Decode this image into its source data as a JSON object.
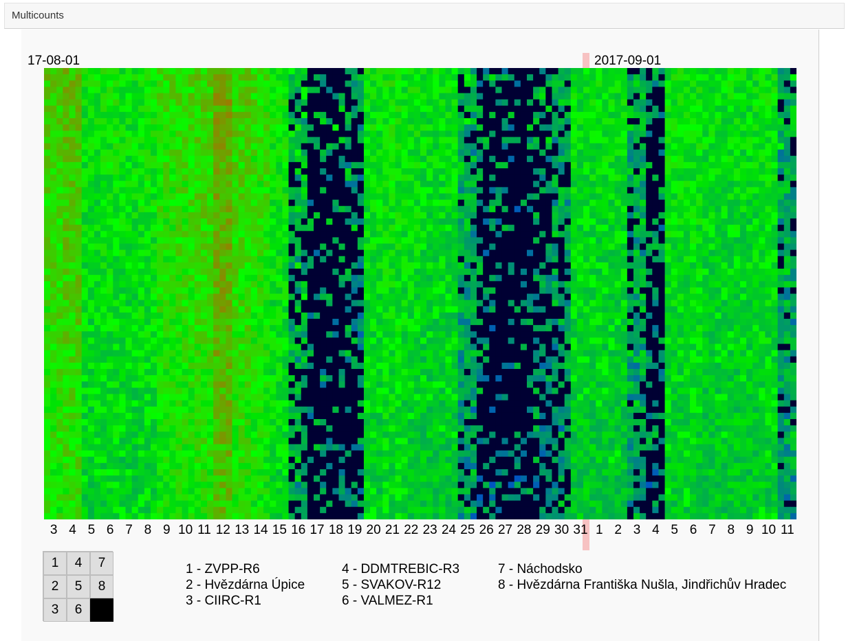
{
  "window": {
    "title": "Multicounts"
  },
  "chart_data": {
    "type": "heatmap",
    "date_labels": {
      "start": "17-08-01",
      "month_start": "2017-09-01"
    },
    "x_ticks": [
      "3",
      "4",
      "5",
      "6",
      "7",
      "8",
      "9",
      "10",
      "11",
      "12",
      "13",
      "14",
      "15",
      "16",
      "17",
      "18",
      "19",
      "20",
      "21",
      "22",
      "23",
      "24",
      "25",
      "26",
      "27",
      "28",
      "29",
      "30",
      "31",
      "1",
      "2",
      "3",
      "4",
      "5",
      "6",
      "7",
      "8",
      "9",
      "10",
      "11"
    ],
    "rows": 24,
    "color_scheme": {
      "high": "#ff0000",
      "mid": "#00ff00",
      "low": "#0000ff",
      "none": "#000033"
    },
    "day_profiles": [
      {
        "day": "3",
        "base": 0.62,
        "gap": 0
      },
      {
        "day": "4",
        "base": 0.65,
        "gap": 0
      },
      {
        "day": "5",
        "base": 0.5,
        "gap": 0
      },
      {
        "day": "6",
        "base": 0.52,
        "gap": 0
      },
      {
        "day": "7",
        "base": 0.5,
        "gap": 0
      },
      {
        "day": "8",
        "base": 0.52,
        "gap": 0
      },
      {
        "day": "9",
        "base": 0.58,
        "gap": 0
      },
      {
        "day": "10",
        "base": 0.6,
        "gap": 0
      },
      {
        "day": "11",
        "base": 0.62,
        "gap": 0
      },
      {
        "day": "12",
        "base": 0.72,
        "gap": 0
      },
      {
        "day": "13",
        "base": 0.62,
        "gap": 0
      },
      {
        "day": "14",
        "base": 0.58,
        "gap": 0
      },
      {
        "day": "15",
        "base": 0.52,
        "gap": 0
      },
      {
        "day": "16",
        "base": 0.5,
        "gap": 0.3
      },
      {
        "day": "17",
        "base": 0.45,
        "gap": 0.75
      },
      {
        "day": "18",
        "base": 0.45,
        "gap": 0.7
      },
      {
        "day": "19",
        "base": 0.42,
        "gap": 0.55
      },
      {
        "day": "20",
        "base": 0.5,
        "gap": 0
      },
      {
        "day": "21",
        "base": 0.52,
        "gap": 0
      },
      {
        "day": "22",
        "base": 0.5,
        "gap": 0
      },
      {
        "day": "23",
        "base": 0.48,
        "gap": 0
      },
      {
        "day": "24",
        "base": 0.48,
        "gap": 0
      },
      {
        "day": "25",
        "base": 0.45,
        "gap": 0.15
      },
      {
        "day": "26",
        "base": 0.42,
        "gap": 0.7
      },
      {
        "day": "27",
        "base": 0.4,
        "gap": 0.7
      },
      {
        "day": "28",
        "base": 0.4,
        "gap": 0.75
      },
      {
        "day": "29",
        "base": 0.42,
        "gap": 0.55
      },
      {
        "day": "30",
        "base": 0.45,
        "gap": 0.35
      },
      {
        "day": "31",
        "base": 0.48,
        "gap": 0
      },
      {
        "day": "1",
        "base": 0.48,
        "gap": 0
      },
      {
        "day": "2",
        "base": 0.48,
        "gap": 0
      },
      {
        "day": "3",
        "base": 0.45,
        "gap": 0.2
      },
      {
        "day": "4",
        "base": 0.42,
        "gap": 0.65
      },
      {
        "day": "5",
        "base": 0.5,
        "gap": 0
      },
      {
        "day": "6",
        "base": 0.5,
        "gap": 0
      },
      {
        "day": "7",
        "base": 0.48,
        "gap": 0
      },
      {
        "day": "8",
        "base": 0.48,
        "gap": 0
      },
      {
        "day": "9",
        "base": 0.48,
        "gap": 0
      },
      {
        "day": "10",
        "base": 0.5,
        "gap": 0
      },
      {
        "day": "11",
        "base": 0.45,
        "gap": 0.15
      }
    ],
    "cell_layout_key": [
      "1",
      "4",
      "7",
      "2",
      "5",
      "8",
      "3",
      "6",
      ""
    ],
    "stations": [
      "1 - ZVPP-R6",
      "2 - Hvězdárna Úpice",
      "3 - CIIRC-R1",
      "4 - DDMTREBIC-R3",
      "5 - SVAKOV-R12",
      "6 - VALMEZ-R1",
      "7 - Náchodsko",
      "8 - Hvězdárna Františka Nušla, Jindřichův Hradec"
    ]
  }
}
